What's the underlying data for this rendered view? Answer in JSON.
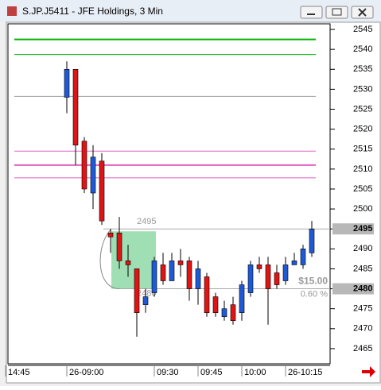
{
  "chart_data": {
    "type": "candlestick",
    "title": "S.JP.J5411 - JFE Holdings, 3 Min",
    "categories": [
      "14:45",
      null,
      null,
      null,
      null,
      null,
      null,
      "26-09:00",
      null,
      null,
      null,
      null,
      null,
      null,
      null,
      null,
      null,
      "09:30",
      null,
      null,
      null,
      null,
      "09:45",
      null,
      null,
      null,
      null,
      "10:00",
      null,
      null,
      null,
      null,
      "26-10:15",
      null,
      null,
      null
    ],
    "open": [
      null,
      null,
      null,
      null,
      null,
      null,
      null,
      2528,
      2535,
      2517,
      2504,
      2512,
      2494,
      2494,
      2487,
      2485,
      2476,
      2479,
      2486,
      2482,
      2487,
      2487,
      2480,
      2483,
      2478,
      2473,
      2476,
      2474,
      2479,
      2486,
      2486,
      2484,
      2482,
      2486,
      2486,
      2489
    ],
    "high": [
      null,
      null,
      null,
      null,
      null,
      null,
      null,
      2537,
      2535,
      2518,
      2516,
      2514,
      2495,
      2498,
      2491,
      2485,
      2480,
      2488,
      2489,
      2489,
      2490,
      2488,
      2487,
      2484,
      2479,
      2477,
      2478,
      2482,
      2487,
      2488,
      2488,
      2486,
      2488,
      2489,
      2491,
      2497
    ],
    "low": [
      null,
      null,
      null,
      null,
      null,
      null,
      null,
      2524,
      2511,
      2504,
      2500,
      2496,
      2489,
      2485,
      2483,
      2468,
      2474,
      2478,
      2481,
      2482,
      2483,
      2477,
      2476,
      2473,
      2473,
      2472,
      2471,
      2472,
      2478,
      2484,
      2471,
      2480,
      2481,
      2486,
      2485,
      2488
    ],
    "close": [
      null,
      null,
      null,
      null,
      null,
      null,
      null,
      2535,
      2516,
      2505,
      2513,
      2497,
      2493,
      2487,
      2486,
      2474,
      2478,
      2487,
      2482,
      2487,
      2486,
      2480,
      2485,
      2474,
      2474,
      2475,
      2472,
      2481,
      2486,
      2485,
      2480,
      2481,
      2486,
      2487,
      2490,
      2495
    ],
    "up_color": "#1e5ad8",
    "down_color": "#e01414",
    "ylim": [
      2461.2,
      2546.4
    ],
    "yticks": [
      2465,
      2470,
      2475,
      2480,
      2485,
      2490,
      2495,
      2500,
      2505,
      2510,
      2515,
      2520,
      2525,
      2530,
      2535,
      2540,
      2545
    ],
    "hlines": [
      {
        "value": 2542.5,
        "color": "#00b400",
        "width": 2
      },
      {
        "value": 2538.7,
        "color": "#00b400",
        "width": 1
      },
      {
        "value": 2528.2,
        "color": "#a0a0a0",
        "width": 1
      },
      {
        "value": 2514.5,
        "color": "#e060c0",
        "width": 1
      },
      {
        "value": 2511,
        "color": "#e060c0",
        "width": 2
      },
      {
        "value": 2507.8,
        "color": "#e060c0",
        "width": 1
      }
    ],
    "measure": {
      "high": 2495,
      "low": 2480,
      "change_label": "$15.00",
      "pct_label": "0.60 %"
    }
  }
}
